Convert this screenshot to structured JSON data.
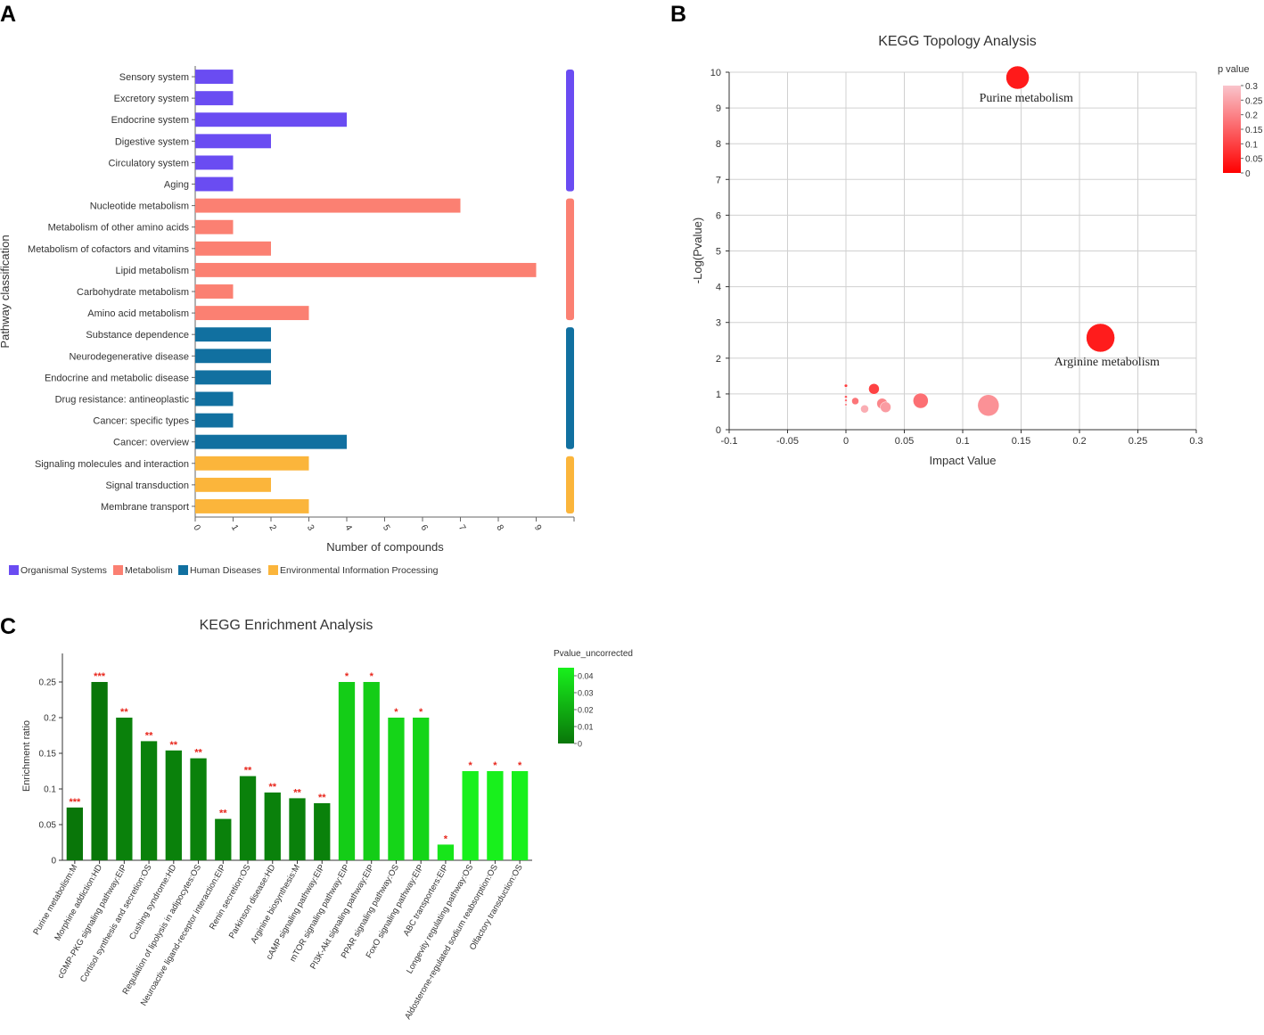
{
  "chart_data": [
    {
      "panel": "A",
      "type": "bar",
      "orientation": "horizontal",
      "title": "",
      "xlabel": "Number of compounds",
      "ylabel": "Pathway classification",
      "xlim": [
        0,
        10
      ],
      "xticks": [
        "0",
        "1",
        "2",
        "3",
        "4",
        "5",
        "6",
        "7",
        "8",
        "9"
      ],
      "categories": [
        "Sensory system",
        "Excretory system",
        "Endocrine system",
        "Digestive system",
        "Circulatory system",
        "Aging",
        "Nucleotide metabolism",
        "Metabolism of other amino acids",
        "Metabolism of cofactors and vitamins",
        "Lipid metabolism",
        "Carbohydrate metabolism",
        "Amino acid metabolism",
        "Substance dependence",
        "Neurodegenerative disease",
        "Endocrine and metabolic disease",
        "Drug resistance: antineoplastic",
        "Cancer: specific types",
        "Cancer: overview",
        "Signaling molecules and interaction",
        "Signal transduction",
        "Membrane transport"
      ],
      "values": [
        1,
        1,
        4,
        2,
        1,
        1,
        7,
        1,
        2,
        9,
        1,
        3,
        2,
        2,
        2,
        1,
        1,
        4,
        3,
        2,
        3
      ],
      "groups": [
        {
          "name": "Organismal Systems",
          "color": "#6a4cf2",
          "count": 6
        },
        {
          "name": "Metabolism",
          "color": "#fb8072",
          "count": 6
        },
        {
          "name": "Human Diseases",
          "color": "#1170a0",
          "count": 6
        },
        {
          "name": "Environmental Information Processing",
          "color": "#fbb53b",
          "count": 3
        }
      ]
    },
    {
      "panel": "B",
      "type": "scatter",
      "title": "KEGG Topology Analysis",
      "xlabel": "Impact Value",
      "ylabel": "-Log(Pvalue)",
      "xlim": [
        -0.1,
        0.3
      ],
      "ylim": [
        0,
        10
      ],
      "xticks": [
        "-0.1",
        "-0.05",
        "0",
        "0.05",
        "0.1",
        "0.15",
        "0.2",
        "0.25",
        "0.3"
      ],
      "yticks": [
        "0",
        "1",
        "2",
        "3",
        "4",
        "5",
        "6",
        "7",
        "8",
        "9",
        "10"
      ],
      "colorbar": {
        "title": "p value",
        "ticks": [
          "0.3",
          "0.25",
          "0.2",
          "0.15",
          "0.1",
          "0.05",
          "0"
        ]
      },
      "points": [
        {
          "x": 0.147,
          "y": 9.85,
          "size": 13,
          "p": 0.0,
          "label": "Purine metabolism"
        },
        {
          "x": 0.218,
          "y": 2.57,
          "size": 16,
          "p": 0.003,
          "label": "Arginine metabolism"
        },
        {
          "x": 0.122,
          "y": 0.68,
          "size": 12,
          "p": 0.21,
          "label": ""
        },
        {
          "x": 0.064,
          "y": 0.81,
          "size": 8.5,
          "p": 0.15,
          "label": ""
        },
        {
          "x": 0.024,
          "y": 1.14,
          "size": 6,
          "p": 0.07,
          "label": ""
        },
        {
          "x": 0.031,
          "y": 0.73,
          "size": 6,
          "p": 0.19,
          "label": ""
        },
        {
          "x": 0.034,
          "y": 0.63,
          "size": 6,
          "p": 0.23,
          "label": ""
        },
        {
          "x": 0.016,
          "y": 0.58,
          "size": 4.5,
          "p": 0.26,
          "label": ""
        },
        {
          "x": 0.008,
          "y": 0.8,
          "size": 4,
          "p": 0.16,
          "label": ""
        },
        {
          "x": 0.0,
          "y": 1.23,
          "size": 1.8,
          "p": 0.06,
          "label": ""
        },
        {
          "x": 0.0,
          "y": 0.92,
          "size": 1.6,
          "p": 0.12,
          "label": ""
        },
        {
          "x": 0.0,
          "y": 0.82,
          "size": 1.5,
          "p": 0.15,
          "label": ""
        },
        {
          "x": 0.0,
          "y": 0.7,
          "size": 1.4,
          "p": 0.2,
          "label": ""
        }
      ]
    },
    {
      "panel": "C",
      "type": "bar",
      "title": "KEGG Enrichment Analysis",
      "xlabel": "",
      "ylabel": "Enrichment ratio",
      "ylim": [
        0,
        0.29
      ],
      "yticks": [
        "0",
        "0.05",
        "0.1",
        "0.15",
        "0.2",
        "0.25"
      ],
      "colorbar": {
        "title": "Pvalue_uncorrected",
        "ticks": [
          "0.04",
          "0.03",
          "0.02",
          "0.01",
          "0"
        ]
      },
      "categories": [
        "Purine metabolism:M",
        "Morphine addiction:HD",
        "cGMP-PKG signaling pathway:EIP",
        "Cortisol synthesis and secretion:OS",
        "Cushing syndrome:HD",
        "Regulation of lipolysis in adipocytes:OS",
        "Neuroactive ligand-receptor interaction:EIP",
        "Renin secretion:OS",
        "Parkinson disease:HD",
        "Arginine biosynthesis:M",
        "cAMP signaling pathway:EIP",
        "mTOR signaling pathway:EIP",
        "PI3K-Akt signaling pathway:EIP",
        "PPAR signaling pathway:OS",
        "FoxO signaling pathway:EIP",
        "ABC transporters:EIP",
        "Longevity regulating pathway:OS",
        "Aldosterone-regulated sodium reabsorption:OS",
        "Olfactory transduction:OS"
      ],
      "values": [
        0.074,
        0.25,
        0.2,
        0.167,
        0.154,
        0.143,
        0.058,
        0.118,
        0.095,
        0.087,
        0.08,
        0.25,
        0.25,
        0.2,
        0.2,
        0.022,
        0.125,
        0.125,
        0.125
      ],
      "pvalues": [
        0.0,
        0.0,
        0.004,
        0.004,
        0.004,
        0.004,
        0.004,
        0.004,
        0.004,
        0.004,
        0.004,
        0.032,
        0.032,
        0.035,
        0.035,
        0.041,
        0.045,
        0.045,
        0.045
      ],
      "significance": [
        "***",
        "***",
        "**",
        "**",
        "**",
        "**",
        "**",
        "**",
        "**",
        "**",
        "**",
        "*",
        "*",
        "*",
        "*",
        "*",
        "*",
        "*",
        "*"
      ]
    }
  ],
  "panel_letters": {
    "a": "A",
    "b": "B",
    "c": "C"
  }
}
